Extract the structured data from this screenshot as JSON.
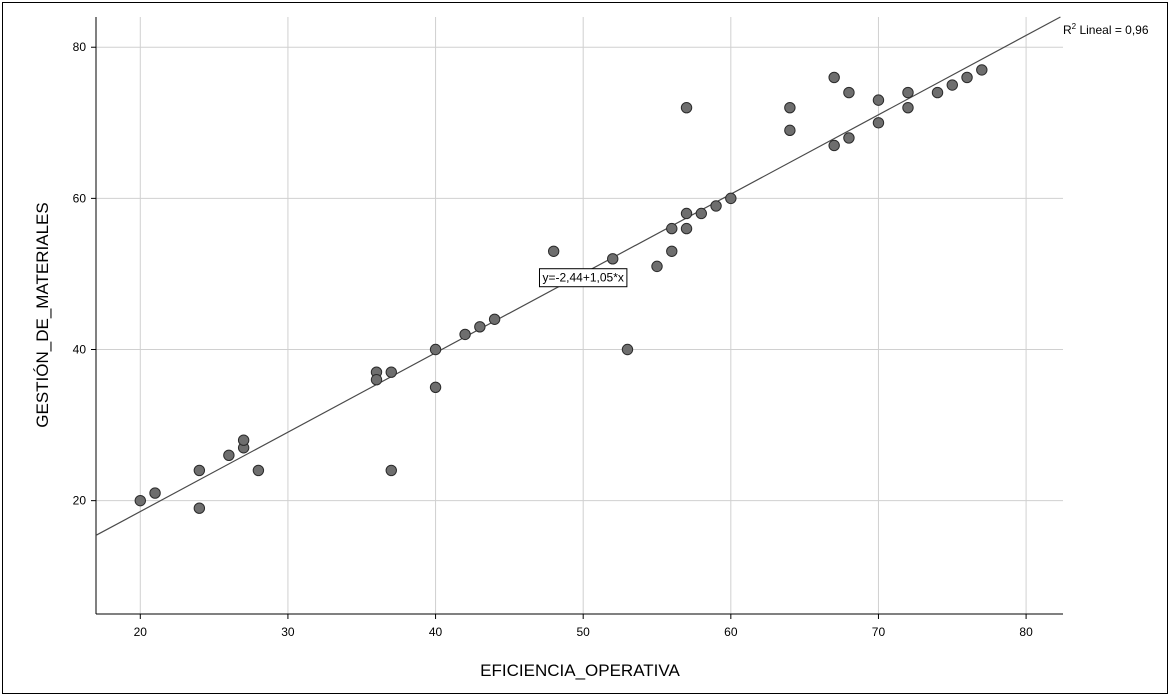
{
  "chart_data": {
    "type": "scatter",
    "title": "",
    "xlabel": "EFICIENCIA_OPERATIVA",
    "ylabel": "GESTIÓN_DE_MATERIALES",
    "xlim": [
      17,
      82.5
    ],
    "ylim": [
      5,
      84
    ],
    "x_ticks": [
      20,
      30,
      40,
      50,
      60,
      70,
      80
    ],
    "y_ticks": [
      20,
      40,
      60,
      80
    ],
    "grid": true,
    "points": [
      {
        "x": 20,
        "y": 20
      },
      {
        "x": 21,
        "y": 21
      },
      {
        "x": 24,
        "y": 24
      },
      {
        "x": 24,
        "y": 19
      },
      {
        "x": 26,
        "y": 26
      },
      {
        "x": 27,
        "y": 27
      },
      {
        "x": 27,
        "y": 28
      },
      {
        "x": 28,
        "y": 24
      },
      {
        "x": 36,
        "y": 37
      },
      {
        "x": 36,
        "y": 36
      },
      {
        "x": 37,
        "y": 37
      },
      {
        "x": 37,
        "y": 24
      },
      {
        "x": 40,
        "y": 40
      },
      {
        "x": 40,
        "y": 35
      },
      {
        "x": 42,
        "y": 42
      },
      {
        "x": 43,
        "y": 43
      },
      {
        "x": 44,
        "y": 44
      },
      {
        "x": 48,
        "y": 53
      },
      {
        "x": 52,
        "y": 52
      },
      {
        "x": 53,
        "y": 40
      },
      {
        "x": 55,
        "y": 51
      },
      {
        "x": 56,
        "y": 53
      },
      {
        "x": 56,
        "y": 56
      },
      {
        "x": 57,
        "y": 58
      },
      {
        "x": 57,
        "y": 56
      },
      {
        "x": 57,
        "y": 72
      },
      {
        "x": 58,
        "y": 58
      },
      {
        "x": 59,
        "y": 59
      },
      {
        "x": 60,
        "y": 60
      },
      {
        "x": 64,
        "y": 72
      },
      {
        "x": 64,
        "y": 69
      },
      {
        "x": 67,
        "y": 76
      },
      {
        "x": 67,
        "y": 67
      },
      {
        "x": 68,
        "y": 74
      },
      {
        "x": 68,
        "y": 68
      },
      {
        "x": 70,
        "y": 73
      },
      {
        "x": 70,
        "y": 70
      },
      {
        "x": 72,
        "y": 74
      },
      {
        "x": 72,
        "y": 72
      },
      {
        "x": 74,
        "y": 74
      },
      {
        "x": 75,
        "y": 75
      },
      {
        "x": 76,
        "y": 76
      },
      {
        "x": 77,
        "y": 77
      }
    ],
    "fit_line": {
      "intercept": -2.44,
      "slope": 1.05
    },
    "equation_label": "y=-2,44+1,05*x",
    "equation_at": {
      "x": 50,
      "y": 49.5
    },
    "r2_label_prefix": "R",
    "r2_label_sup": "2",
    "r2_label_suffix": " Lineal = 0,96",
    "colors": {
      "point_fill": "#6e6e6e",
      "point_stroke": "#2b2b2b",
      "line": "#4a4a4a",
      "grid": "#d0d0d0",
      "axis": "#000000"
    }
  }
}
